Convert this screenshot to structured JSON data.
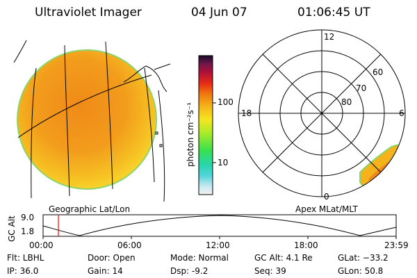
{
  "header": {
    "instrument": "Ultraviolet Imager",
    "date": "04 Jun 07",
    "time": "01:06:45 UT"
  },
  "colorbar": {
    "label": "photon cm⁻²s⁻¹",
    "ticks": [
      "100",
      "10"
    ]
  },
  "geo_panel": {
    "caption": "Geographic Lat/Lon"
  },
  "polar_panel": {
    "caption": "Apex MLat/MLT",
    "mlt_labels": {
      "top": "12",
      "left": "18",
      "right": "6",
      "bottom": "0"
    },
    "lat_labels": [
      "60",
      "70",
      "80"
    ]
  },
  "altitude_plot": {
    "ylabel": "GC Alt",
    "yticks": [
      "9.0",
      "1.8"
    ],
    "xticks": [
      "00:00",
      "06:00",
      "12:00",
      "18:00",
      "23:59"
    ],
    "current_time_marker": "01:06"
  },
  "info": {
    "flt": "Flt: LBHL",
    "ip": "IP: 36.0",
    "door": "Door: Open",
    "gain": "Gain: 14",
    "mode": "Mode: Normal",
    "dsp": "Dsp:    -9.2",
    "gc_alt": "GC Alt: 4.1 Re",
    "seq": "Seq: 39",
    "glat": "GLat: −33.2",
    "glon": "GLon:   50.8"
  },
  "colors": {
    "earth_fill": "#f0a81e",
    "earth_rim": "#8bd46a",
    "marker": "#ff0000"
  }
}
